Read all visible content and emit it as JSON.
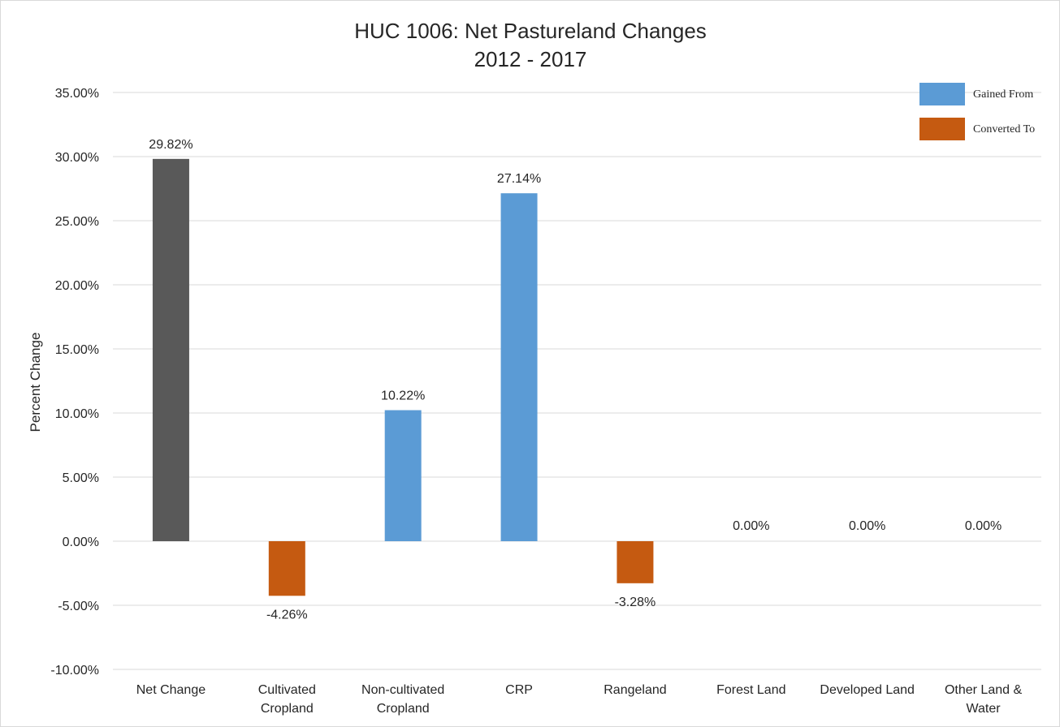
{
  "chart_data": {
    "type": "bar",
    "title": [
      "HUC 1006: Net Pastureland Changes",
      "2012 - 2017"
    ],
    "ylabel": "Percent Change",
    "xlabel": "",
    "ylim": [
      -10,
      35
    ],
    "ytick_step": 5,
    "y_ticks": [
      "-10.00%",
      "-5.00%",
      "0.00%",
      "5.00%",
      "10.00%",
      "15.00%",
      "20.00%",
      "25.00%",
      "30.00%",
      "35.00%"
    ],
    "grid": true,
    "legend_position": "top-right",
    "categories": [
      [
        "Net Change"
      ],
      [
        "Cultivated",
        "Cropland"
      ],
      [
        "Non-cultivated",
        "Cropland"
      ],
      [
        "CRP"
      ],
      [
        "Rangeland"
      ],
      [
        "Forest Land"
      ],
      [
        "Developed Land"
      ],
      [
        "Other Land &",
        "Water"
      ]
    ],
    "values": [
      29.82,
      -4.26,
      10.22,
      27.14,
      -3.28,
      0.0,
      0.0,
      0.0
    ],
    "data_labels": [
      "29.82%",
      "-4.26%",
      "10.22%",
      "27.14%",
      "-3.28%",
      "0.00%",
      "0.00%",
      "0.00%"
    ],
    "series_keys": [
      "net",
      "converted",
      "gained",
      "gained",
      "converted",
      "none",
      "none",
      "none"
    ],
    "legend": [
      {
        "key": "gained",
        "name": "Gained From"
      },
      {
        "key": "converted",
        "name": "Converted To"
      }
    ],
    "colors": {
      "net": "#595959",
      "gained": "#5b9bd5",
      "converted": "#c55a11"
    }
  }
}
